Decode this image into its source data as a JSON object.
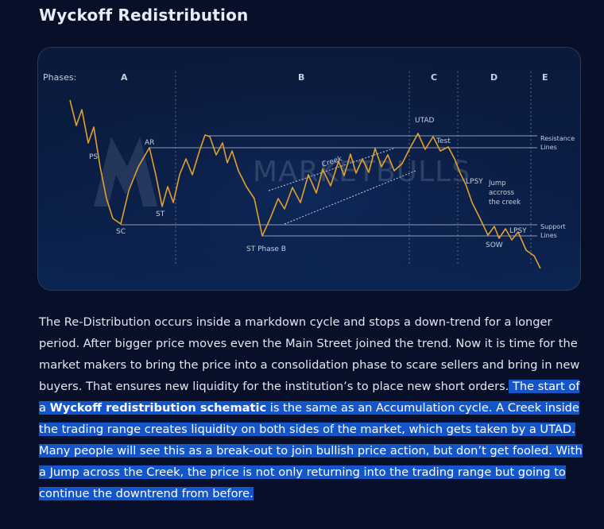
{
  "page": {
    "title": "Wyckoff Redistribution"
  },
  "diagram": {
    "phases_label": "Phases:",
    "phases": [
      "A",
      "B",
      "C",
      "D",
      "E"
    ],
    "labels": {
      "ps": "PS",
      "ar": "AR",
      "sc": "SC",
      "st": "ST",
      "st_phase_b": "ST Phase B",
      "creek": "Creek",
      "utad": "UTAD",
      "test": "Test",
      "lpsy": "LPSY",
      "lpsy2": "LPSY",
      "sow": "SOW",
      "jump_1": "Jump",
      "jump_2": "accross",
      "jump_3": "the creek",
      "resistance_1": "Resistance",
      "resistance_2": "Lines",
      "support_1": "Support",
      "support_2": "Lines"
    },
    "watermark": "MARKETBULLS",
    "colors": {
      "price_line": "#e1a12c",
      "level_lines": "#8e9bb6",
      "background": "#0b1d44"
    }
  },
  "article": {
    "intro": "The Re-Distribution occurs inside a markdown cycle and stops a down-trend for a longer period. After bigger price moves even the Main Street joined the trend. Now it is time for the market makers to bring the price into a consolidation phase to scare sellers and bring in new buyers. That ensures new liquidity for the institution’s to place new short orders.",
    "highlight_lead": " The start of a ",
    "highlight_bold": "Wyckoff redistribution schematic",
    "highlight_rest": " is the same as an Accumulation cycle. A Creek inside the trading range creates liquidity on both sides of the market, which gets taken by a UTAD. Many people will see this as a break-out to join bullish price action, but don’t get fooled. With a Jump across the Creek, the price is not only returning into the trading range but going to continue the downtrend from before."
  }
}
